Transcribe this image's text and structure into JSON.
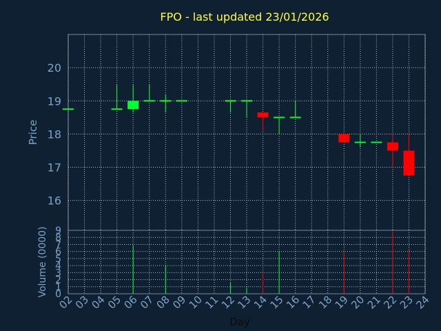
{
  "chart_data": {
    "type": "candlestick",
    "title": "FPO - last updated 23/01/2026",
    "xlabel": "Day",
    "ylabel_price": "Price",
    "ylabel_volume": "Volume (0000)",
    "x_ticks": [
      "02",
      "03",
      "04",
      "05",
      "06",
      "07",
      "08",
      "09",
      "10",
      "11",
      "12",
      "13",
      "14",
      "15",
      "16",
      "17",
      "18",
      "19",
      "20",
      "21",
      "22",
      "23",
      "24"
    ],
    "x_range": [
      2,
      24
    ],
    "price_range": [
      15.1,
      21.0
    ],
    "price_ticks": [
      16,
      17,
      18,
      19,
      20
    ],
    "volume_range": [
      0,
      9
    ],
    "volume_ticks": [
      0,
      1,
      2,
      3,
      4,
      5,
      6,
      7,
      8,
      9
    ],
    "grid": true,
    "colors": {
      "up": "#00ff33",
      "down": "#ff0000"
    },
    "candles": [
      {
        "day": 2,
        "open": 18.75,
        "high": 18.75,
        "low": 18.75,
        "close": 18.75,
        "volume": 0
      },
      {
        "day": 5,
        "open": 18.75,
        "high": 19.5,
        "low": 18.75,
        "close": 18.75,
        "volume": 0
      },
      {
        "day": 6,
        "open": 18.75,
        "high": 19.5,
        "low": 18.65,
        "close": 19.0,
        "volume": 6.8
      },
      {
        "day": 7,
        "open": 19.0,
        "high": 19.5,
        "low": 19.0,
        "close": 19.0,
        "volume": 0
      },
      {
        "day": 8,
        "open": 19.0,
        "high": 19.2,
        "low": 18.65,
        "close": 19.0,
        "volume": 4.1
      },
      {
        "day": 9,
        "open": 19.0,
        "high": 19.0,
        "low": 19.0,
        "close": 19.0,
        "volume": 0
      },
      {
        "day": 12,
        "open": 19.0,
        "high": 19.0,
        "low": 18.65,
        "close": 19.0,
        "volume": 1.6
      },
      {
        "day": 13,
        "open": 19.0,
        "high": 19.0,
        "low": 18.5,
        "close": 19.0,
        "volume": 0.9
      },
      {
        "day": 14,
        "open": 18.65,
        "high": 18.65,
        "low": 18.1,
        "close": 18.5,
        "volume": 3.0
      },
      {
        "day": 15,
        "open": 18.5,
        "high": 18.5,
        "low": 18.0,
        "close": 18.5,
        "volume": 6.0
      },
      {
        "day": 16,
        "open": 18.5,
        "high": 19.0,
        "low": 18.5,
        "close": 18.5,
        "volume": 0
      },
      {
        "day": 19,
        "open": 18.0,
        "high": 18.0,
        "low": 17.75,
        "close": 17.75,
        "volume": 5.9
      },
      {
        "day": 20,
        "open": 17.75,
        "high": 18.0,
        "low": 17.6,
        "close": 17.75,
        "volume": 0
      },
      {
        "day": 21,
        "open": 17.75,
        "high": 17.75,
        "low": 17.75,
        "close": 17.75,
        "volume": 0
      },
      {
        "day": 22,
        "open": 17.75,
        "high": 18.0,
        "low": 17.0,
        "close": 17.5,
        "volume": 8.8
      },
      {
        "day": 23,
        "open": 17.5,
        "high": 18.0,
        "low": 16.75,
        "close": 16.75,
        "volume": 6.3
      }
    ]
  }
}
